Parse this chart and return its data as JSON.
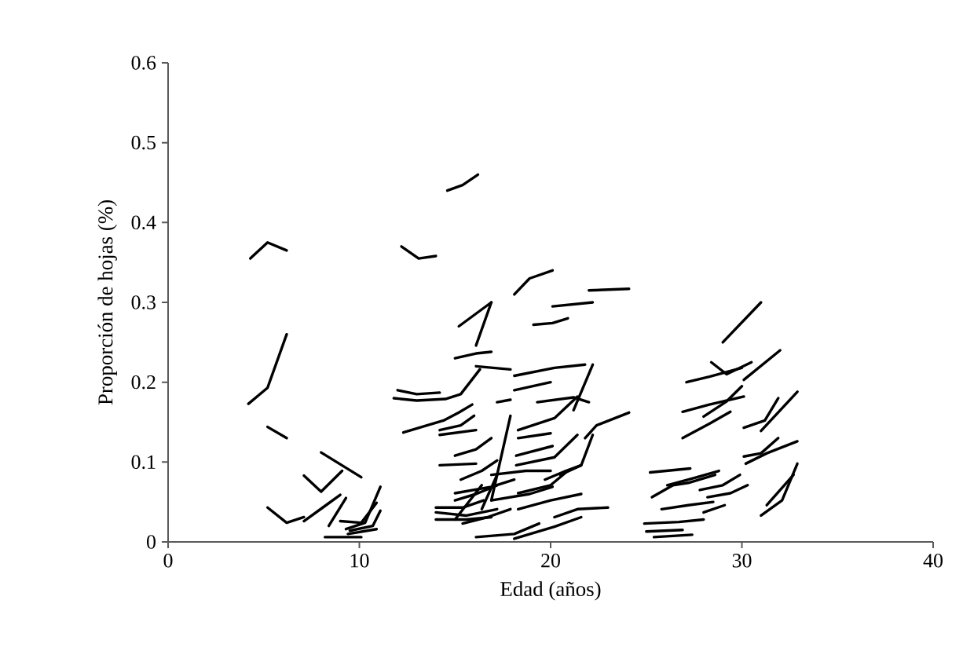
{
  "chart_data": {
    "type": "line",
    "xlabel": "Edad (años)",
    "ylabel": "Proporción de hojas (%)",
    "xlim": [
      0,
      40
    ],
    "xticks": [
      0,
      10,
      20,
      30,
      40
    ],
    "ylim": [
      0,
      0.6
    ],
    "yticks": [
      0,
      0.1,
      0.2,
      0.3,
      0.4,
      0.5,
      0.6
    ],
    "color": "#000000",
    "marker": "none",
    "line_style": "solid",
    "series": [
      {
        "x": [
          4.3,
          5.2,
          6.2
        ],
        "values": [
          0.355,
          0.375,
          0.365
        ]
      },
      {
        "x": [
          4.2,
          5.2,
          6.2
        ],
        "values": [
          0.173,
          0.193,
          0.26
        ]
      },
      {
        "x": [
          5.2,
          6.2
        ],
        "values": [
          0.144,
          0.13
        ]
      },
      {
        "x": [
          5.2,
          6.2,
          7.1
        ],
        "values": [
          0.043,
          0.024,
          0.031
        ]
      },
      {
        "x": [
          8.0,
          10.1
        ],
        "values": [
          0.112,
          0.081
        ]
      },
      {
        "x": [
          7.1,
          8.0,
          9.1
        ],
        "values": [
          0.083,
          0.063,
          0.089
        ]
      },
      {
        "x": [
          7.1,
          8.2,
          9.0
        ],
        "values": [
          0.026,
          0.045,
          0.059
        ]
      },
      {
        "x": [
          8.4,
          9.3
        ],
        "values": [
          0.02,
          0.055
        ]
      },
      {
        "x": [
          8.2,
          10.1
        ],
        "values": [
          0.006,
          0.006
        ]
      },
      {
        "x": [
          9.0,
          10.1,
          10.9
        ],
        "values": [
          0.026,
          0.024,
          0.049
        ]
      },
      {
        "x": [
          9.3,
          10.3,
          11.1
        ],
        "values": [
          0.016,
          0.024,
          0.069
        ]
      },
      {
        "x": [
          9.5,
          10.7,
          11.1
        ],
        "values": [
          0.014,
          0.02,
          0.039
        ]
      },
      {
        "x": [
          9.4,
          10.9
        ],
        "values": [
          0.01,
          0.016
        ]
      },
      {
        "x": [
          12.2,
          13.1,
          14.0
        ],
        "values": [
          0.37,
          0.355,
          0.358
        ]
      },
      {
        "x": [
          18.1,
          18.9,
          20.1
        ],
        "values": [
          0.31,
          0.33,
          0.34
        ]
      },
      {
        "x": [
          22.0,
          24.1
        ],
        "values": [
          0.315,
          0.317
        ]
      },
      {
        "x": [
          20.1,
          22.2
        ],
        "values": [
          0.295,
          0.3
        ]
      },
      {
        "x": [
          19.1,
          20.1,
          20.9
        ],
        "values": [
          0.272,
          0.274,
          0.28
        ]
      },
      {
        "x": [
          15.2,
          16.9
        ],
        "values": [
          0.27,
          0.3
        ]
      },
      {
        "x": [
          16.1,
          16.9
        ],
        "values": [
          0.246,
          0.3
        ]
      },
      {
        "x": [
          15.0,
          16.1,
          16.9
        ],
        "values": [
          0.23,
          0.236,
          0.238
        ]
      },
      {
        "x": [
          16.1,
          17.9
        ],
        "values": [
          0.22,
          0.216
        ]
      },
      {
        "x": [
          12.0,
          13.0,
          14.2
        ],
        "values": [
          0.19,
          0.185,
          0.187
        ]
      },
      {
        "x": [
          11.8,
          13.0,
          14.5,
          15.3,
          16.3
        ],
        "values": [
          0.18,
          0.177,
          0.179,
          0.185,
          0.216
        ]
      },
      {
        "x": [
          18.1,
          20.2,
          21.8
        ],
        "values": [
          0.208,
          0.218,
          0.222
        ]
      },
      {
        "x": [
          18.1,
          20.0
        ],
        "values": [
          0.19,
          0.2
        ]
      },
      {
        "x": [
          21.2,
          22.2
        ],
        "values": [
          0.165,
          0.222
        ]
      },
      {
        "x": [
          17.2,
          17.9
        ],
        "values": [
          0.175,
          0.178
        ]
      },
      {
        "x": [
          19.3,
          21.2,
          22.0
        ],
        "values": [
          0.175,
          0.181,
          0.175
        ]
      },
      {
        "x": [
          12.3,
          13.4,
          14.4,
          15.2,
          15.9
        ],
        "values": [
          0.137,
          0.145,
          0.152,
          0.162,
          0.172
        ]
      },
      {
        "x": [
          14.2,
          15.3,
          16.0
        ],
        "values": [
          0.14,
          0.146,
          0.158
        ]
      },
      {
        "x": [
          14.2,
          16.1
        ],
        "values": [
          0.134,
          0.14
        ]
      },
      {
        "x": [
          18.3,
          20.2,
          21.4
        ],
        "values": [
          0.14,
          0.155,
          0.182
        ]
      },
      {
        "x": [
          18.3,
          20.0
        ],
        "values": [
          0.13,
          0.136
        ]
      },
      {
        "x": [
          21.8,
          22.4,
          24.1
        ],
        "values": [
          0.13,
          0.146,
          0.162
        ]
      },
      {
        "x": [
          15.0,
          16.1,
          16.9
        ],
        "values": [
          0.108,
          0.116,
          0.13
        ]
      },
      {
        "x": [
          16.9,
          17.4,
          17.9
        ],
        "values": [
          0.052,
          0.105,
          0.158
        ]
      },
      {
        "x": [
          18.2,
          20.1
        ],
        "values": [
          0.108,
          0.12
        ]
      },
      {
        "x": [
          14.2,
          16.1
        ],
        "values": [
          0.096,
          0.098
        ]
      },
      {
        "x": [
          18.2,
          20.2,
          21.4
        ],
        "values": [
          0.096,
          0.106,
          0.134
        ]
      },
      {
        "x": [
          20.5,
          21.6,
          22.2
        ],
        "values": [
          0.084,
          0.096,
          0.134
        ]
      },
      {
        "x": [
          15.3,
          16.4,
          17.2
        ],
        "values": [
          0.078,
          0.089,
          0.102
        ]
      },
      {
        "x": [
          16.9,
          18.7,
          20.0
        ],
        "values": [
          0.084,
          0.089,
          0.089
        ]
      },
      {
        "x": [
          15.0,
          16.9,
          18.1
        ],
        "values": [
          0.061,
          0.069,
          0.078
        ]
      },
      {
        "x": [
          18.3,
          20.0,
          20.8
        ],
        "values": [
          0.061,
          0.071,
          0.087
        ]
      },
      {
        "x": [
          16.9,
          18.9,
          20.1
        ],
        "values": [
          0.052,
          0.06,
          0.069
        ]
      },
      {
        "x": [
          14.0,
          15.4,
          16.5
        ],
        "values": [
          0.043,
          0.043,
          0.052
        ]
      },
      {
        "x": [
          14.0,
          15.6,
          17.2
        ],
        "values": [
          0.037,
          0.033,
          0.041
        ]
      },
      {
        "x": [
          15.0,
          16.1,
          17.2
        ],
        "values": [
          0.052,
          0.06,
          0.071
        ]
      },
      {
        "x": [
          16.4,
          17.2
        ],
        "values": [
          0.041,
          0.084
        ]
      },
      {
        "x": [
          14.0,
          15.6,
          16.9
        ],
        "values": [
          0.028,
          0.028,
          0.031
        ]
      },
      {
        "x": [
          16.1,
          18.1,
          19.4
        ],
        "values": [
          0.006,
          0.01,
          0.023
        ]
      },
      {
        "x": [
          18.1,
          20.2,
          21.6
        ],
        "values": [
          0.004,
          0.019,
          0.031
        ]
      },
      {
        "x": [
          20.2,
          21.4,
          23.0
        ],
        "values": [
          0.031,
          0.041,
          0.043
        ]
      },
      {
        "x": [
          15.4,
          16.7,
          17.9
        ],
        "values": [
          0.023,
          0.031,
          0.041
        ]
      },
      {
        "x": [
          18.3,
          20.0,
          21.6
        ],
        "values": [
          0.041,
          0.052,
          0.06
        ]
      },
      {
        "x": [
          19.7,
          20.8,
          21.6
        ],
        "values": [
          0.078,
          0.089,
          0.096
        ]
      },
      {
        "x": [
          15.0,
          16.4
        ],
        "values": [
          0.028,
          0.071
        ]
      },
      {
        "x": [
          29.0,
          31.0
        ],
        "values": [
          0.25,
          0.3
        ]
      },
      {
        "x": [
          27.1,
          28.3,
          30.0
        ],
        "values": [
          0.2,
          0.207,
          0.218
        ]
      },
      {
        "x": [
          28.4,
          29.2,
          30.5
        ],
        "values": [
          0.225,
          0.21,
          0.225
        ]
      },
      {
        "x": [
          30.1,
          32.0
        ],
        "values": [
          0.203,
          0.24
        ]
      },
      {
        "x": [
          26.9,
          28.3,
          30.1
        ],
        "values": [
          0.163,
          0.172,
          0.182
        ]
      },
      {
        "x": [
          28.0,
          29.2,
          30.0
        ],
        "values": [
          0.157,
          0.176,
          0.195
        ]
      },
      {
        "x": [
          26.9,
          28.3,
          29.4
        ],
        "values": [
          0.13,
          0.148,
          0.163
        ]
      },
      {
        "x": [
          30.1,
          31.2,
          31.9
        ],
        "values": [
          0.143,
          0.152,
          0.18
        ]
      },
      {
        "x": [
          31.0,
          32.9
        ],
        "values": [
          0.139,
          0.188
        ]
      },
      {
        "x": [
          30.1,
          31.0,
          31.9
        ],
        "values": [
          0.107,
          0.111,
          0.13
        ]
      },
      {
        "x": [
          30.2,
          31.3,
          32.9
        ],
        "values": [
          0.098,
          0.111,
          0.126
        ]
      },
      {
        "x": [
          31.0,
          32.1,
          32.9
        ],
        "values": [
          0.033,
          0.052,
          0.098
        ]
      },
      {
        "x": [
          31.3,
          32.7
        ],
        "values": [
          0.046,
          0.084
        ]
      },
      {
        "x": [
          25.2,
          27.3
        ],
        "values": [
          0.087,
          0.092
        ]
      },
      {
        "x": [
          25.3,
          26.4,
          27.2,
          28.6
        ],
        "values": [
          0.056,
          0.071,
          0.074,
          0.084
        ]
      },
      {
        "x": [
          26.1,
          27.5,
          28.8
        ],
        "values": [
          0.071,
          0.08,
          0.089
        ]
      },
      {
        "x": [
          27.8,
          29.0,
          29.9
        ],
        "values": [
          0.065,
          0.071,
          0.084
        ]
      },
      {
        "x": [
          25.8,
          27.2,
          28.5
        ],
        "values": [
          0.041,
          0.046,
          0.05
        ]
      },
      {
        "x": [
          28.2,
          29.4,
          30.3
        ],
        "values": [
          0.056,
          0.061,
          0.071
        ]
      },
      {
        "x": [
          28.0,
          29.1
        ],
        "values": [
          0.037,
          0.046
        ]
      },
      {
        "x": [
          24.9,
          26.7,
          28.0
        ],
        "values": [
          0.023,
          0.025,
          0.028
        ]
      },
      {
        "x": [
          25.0,
          26.9
        ],
        "values": [
          0.013,
          0.015
        ]
      },
      {
        "x": [
          25.4,
          27.4
        ],
        "values": [
          0.006,
          0.009
        ]
      },
      {
        "x": [
          14.6,
          15.4,
          16.2
        ],
        "values": [
          0.44,
          0.447,
          0.46
        ]
      }
    ]
  }
}
